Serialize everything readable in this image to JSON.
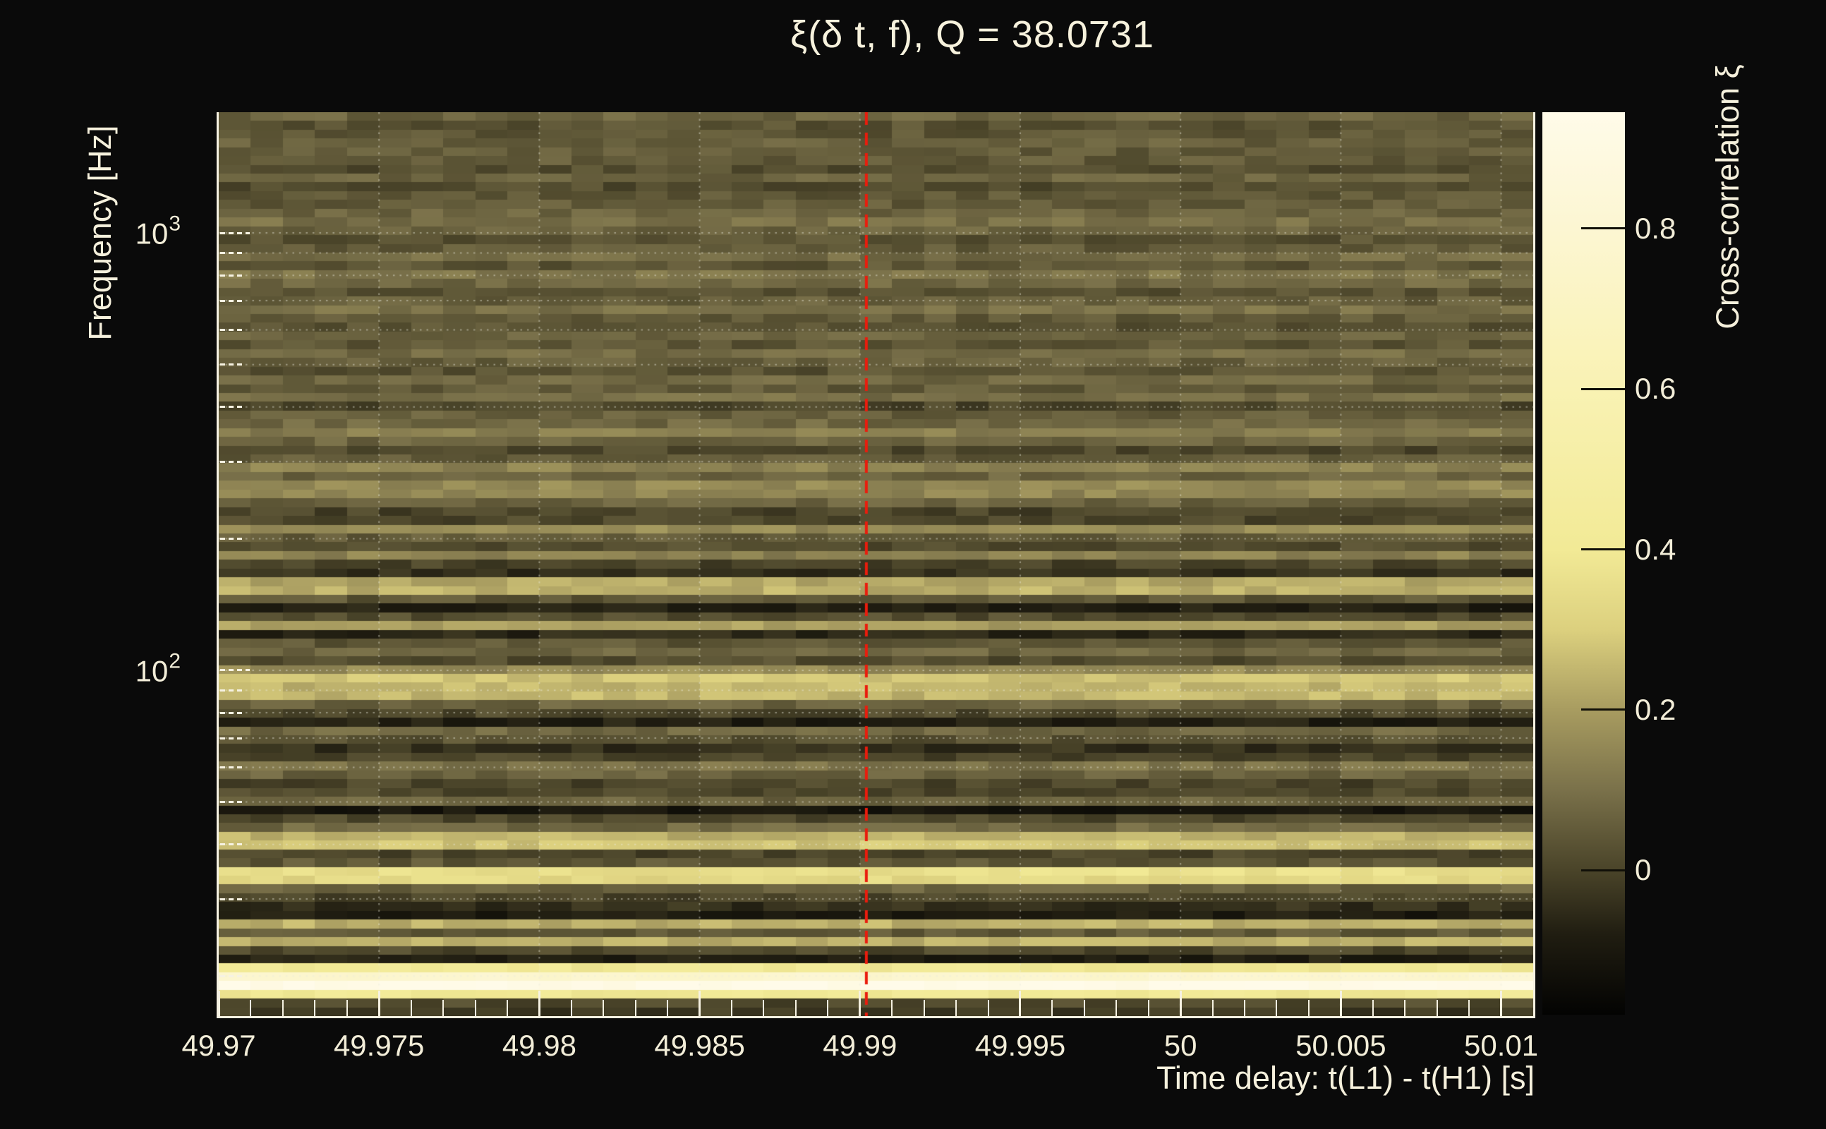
{
  "title": "ξ(δ t, f), Q = 38.0731",
  "colors": {
    "background": "#0a0a0a",
    "text": "#f3eedb",
    "frame": "#f6f2e2",
    "grid": "rgba(235,235,222,0.45)",
    "marker_line": "#ea1c0d"
  },
  "chart_data": {
    "type": "heatmap",
    "title": "ξ(δ t, f), Q = 38.0731",
    "xlabel": "Time delay: t(L1) - t(H1) [s]",
    "ylabel": "Frequency [Hz]",
    "colorbar_label": "Cross-correlation ξ",
    "x_range_s": [
      49.97,
      50.011
    ],
    "x_major_ticks": [
      {
        "t": 49.97,
        "label": "49.97"
      },
      {
        "t": 49.975,
        "label": "49.975"
      },
      {
        "t": 49.98,
        "label": "49.98"
      },
      {
        "t": 49.985,
        "label": "49.985"
      },
      {
        "t": 49.99,
        "label": "49.99"
      },
      {
        "t": 49.995,
        "label": "49.995"
      },
      {
        "t": 50.0,
        "label": "50"
      },
      {
        "t": 50.005,
        "label": "50.005"
      },
      {
        "t": 50.01,
        "label": "50.01"
      }
    ],
    "x_minor_step_s": 0.001,
    "y_scale": "log",
    "y_range_hz": [
      16.2,
      1888
    ],
    "y_major_ticks": [
      {
        "f": 1000,
        "base": "10",
        "exp": "3"
      },
      {
        "f": 100,
        "base": "10",
        "exp": "2"
      }
    ],
    "y_minor_ticks_hz": [
      20,
      30,
      40,
      50,
      60,
      70,
      80,
      90,
      200,
      300,
      400,
      500,
      600,
      700,
      800,
      900
    ],
    "grid": {
      "vertical_at_x_major": true,
      "horizontal_at_all_y_ticks": true,
      "style": "dotted-white"
    },
    "marker_line": {
      "t": 49.9902,
      "style": "dashed",
      "color": "#ea1c0d"
    },
    "colorbar": {
      "z_min": -0.18,
      "z_max": 0.945,
      "ticks": [
        {
          "z": 0.8,
          "label": "0.8"
        },
        {
          "z": 0.6,
          "label": "0.6"
        },
        {
          "z": 0.4,
          "label": "0.4"
        },
        {
          "z": 0.2,
          "label": "0.2"
        },
        {
          "z": 0.0,
          "label": "0"
        }
      ],
      "palette_stops": [
        [
          -0.18,
          "#030302"
        ],
        [
          -0.08,
          "#201d11"
        ],
        [
          0.0,
          "#4a4429"
        ],
        [
          0.1,
          "#7a714a"
        ],
        [
          0.2,
          "#a89c60"
        ],
        [
          0.3,
          "#dcd07e"
        ],
        [
          0.4,
          "#f2ea96"
        ],
        [
          0.6,
          "#f9f2b3"
        ],
        [
          0.8,
          "#fcf6d2"
        ],
        [
          0.945,
          "#fffbe9"
        ]
      ]
    },
    "time_bins": 41,
    "row_count": 103,
    "row_values_top_to_bottom": [
      0.07,
      0.03,
      0.04,
      0.06,
      0.05,
      0.05,
      0.02,
      0.07,
      0.02,
      0.04,
      0.05,
      0.07,
      0.1,
      0.07,
      0.03,
      0.05,
      0.09,
      0.04,
      0.11,
      0.08,
      0.03,
      0.06,
      0.1,
      0.05,
      0.03,
      0.07,
      0.04,
      0.09,
      0.06,
      0.03,
      0.08,
      0.05,
      0.1,
      0.0,
      0.06,
      0.08,
      0.13,
      0.07,
      0.01,
      0.05,
      0.14,
      0.07,
      0.16,
      0.15,
      0.07,
      0.0,
      0.01,
      0.16,
      0.05,
      0.02,
      0.14,
      0.0,
      -0.04,
      0.22,
      0.24,
      0.04,
      -0.08,
      0.02,
      0.2,
      -0.06,
      0.04,
      0.08,
      0.02,
      0.16,
      0.28,
      0.25,
      0.25,
      0.07,
      0.01,
      -0.08,
      0.08,
      0.03,
      -0.04,
      0.0,
      0.11,
      0.07,
      0.0,
      0.01,
      0.07,
      -0.11,
      0.01,
      0.08,
      0.24,
      0.28,
      0.0,
      0.04,
      0.36,
      0.33,
      0.07,
      0.0,
      -0.04,
      -0.09,
      0.24,
      0.05,
      0.24,
      0.01,
      -0.08,
      0.4,
      0.78,
      0.93,
      0.4,
      0.01,
      -0.02
    ],
    "cell_noise_amplitude": 0.035
  }
}
